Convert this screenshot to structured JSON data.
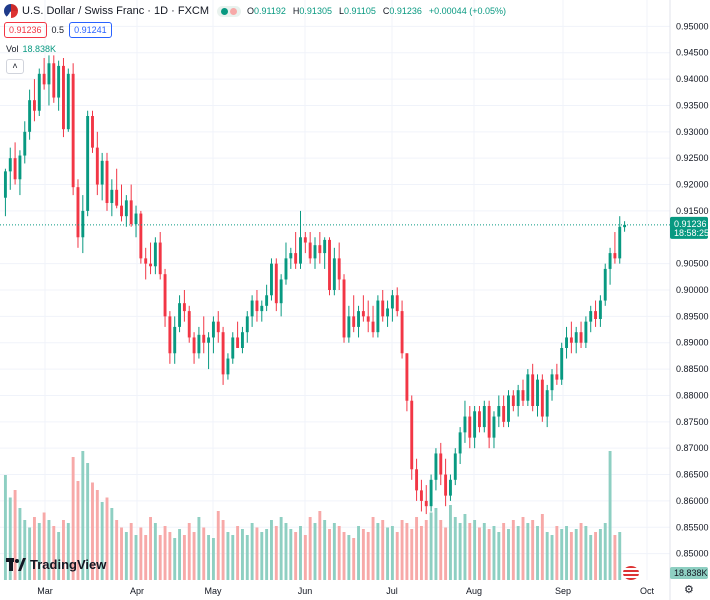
{
  "header": {
    "title": "U.S. Dollar / Swiss Franc · 1D · FXCM",
    "ohlc": [
      {
        "label": "O",
        "value": "0.91192"
      },
      {
        "label": "H",
        "value": "0.91305"
      },
      {
        "label": "L",
        "value": "0.91105"
      },
      {
        "label": "C",
        "value": "0.91236"
      },
      {
        "label": "",
        "value": "+0.00044 (+0.05%)"
      }
    ],
    "sell_price": "0.91236",
    "spread": "0.5",
    "buy_price": "0.91241"
  },
  "volume_legend": {
    "label": "Vol",
    "value": "18.838K"
  },
  "collapse_icon": "chevron-up-icon",
  "logo_text": "TradingView",
  "colors": {
    "up": "#089981",
    "down": "#f23645",
    "up_vol": "#8ecfc2",
    "down_vol": "#f7a9a8",
    "grid": "#f0f3fa"
  },
  "chart_data": {
    "type": "candlestick",
    "y_axis": {
      "min": 0.845,
      "max": 0.955,
      "ticks": [
        "0.95000",
        "0.94500",
        "0.94000",
        "0.93500",
        "0.93000",
        "0.92500",
        "0.92000",
        "0.91500",
        "0.90500",
        "0.90000",
        "0.89500",
        "0.89000",
        "0.88500",
        "0.88000",
        "0.87500",
        "0.87000",
        "0.86500",
        "0.86000",
        "0.85500",
        "0.85000"
      ]
    },
    "x_axis": {
      "ticks": [
        "Mar",
        "Apr",
        "May",
        "Jun",
        "Jul",
        "Aug",
        "Sep",
        "Oct"
      ]
    },
    "last_price_label": "0.91236",
    "countdown_label": "18:58:25",
    "last_volume_label": "18.838K",
    "candles": [
      {
        "o": 0.9175,
        "h": 0.923,
        "l": 0.914,
        "c": 0.9225
      },
      {
        "o": 0.9225,
        "h": 0.927,
        "l": 0.919,
        "c": 0.925
      },
      {
        "o": 0.925,
        "h": 0.928,
        "l": 0.92,
        "c": 0.921
      },
      {
        "o": 0.921,
        "h": 0.9265,
        "l": 0.918,
        "c": 0.9255
      },
      {
        "o": 0.9255,
        "h": 0.932,
        "l": 0.924,
        "c": 0.93
      },
      {
        "o": 0.93,
        "h": 0.938,
        "l": 0.9285,
        "c": 0.936
      },
      {
        "o": 0.936,
        "h": 0.94,
        "l": 0.932,
        "c": 0.934
      },
      {
        "o": 0.934,
        "h": 0.942,
        "l": 0.933,
        "c": 0.941
      },
      {
        "o": 0.941,
        "h": 0.944,
        "l": 0.938,
        "c": 0.939
      },
      {
        "o": 0.939,
        "h": 0.9445,
        "l": 0.935,
        "c": 0.943
      },
      {
        "o": 0.943,
        "h": 0.9445,
        "l": 0.9355,
        "c": 0.9365
      },
      {
        "o": 0.9365,
        "h": 0.9435,
        "l": 0.934,
        "c": 0.9425
      },
      {
        "o": 0.9425,
        "h": 0.944,
        "l": 0.929,
        "c": 0.9305
      },
      {
        "o": 0.9305,
        "h": 0.942,
        "l": 0.93,
        "c": 0.941
      },
      {
        "o": 0.941,
        "h": 0.943,
        "l": 0.918,
        "c": 0.9195
      },
      {
        "o": 0.9195,
        "h": 0.921,
        "l": 0.908,
        "c": 0.91
      },
      {
        "o": 0.91,
        "h": 0.918,
        "l": 0.907,
        "c": 0.915
      },
      {
        "o": 0.915,
        "h": 0.934,
        "l": 0.914,
        "c": 0.933
      },
      {
        "o": 0.933,
        "h": 0.934,
        "l": 0.926,
        "c": 0.927
      },
      {
        "o": 0.927,
        "h": 0.93,
        "l": 0.918,
        "c": 0.92
      },
      {
        "o": 0.92,
        "h": 0.926,
        "l": 0.917,
        "c": 0.9245
      },
      {
        "o": 0.9245,
        "h": 0.926,
        "l": 0.915,
        "c": 0.9165
      },
      {
        "o": 0.9165,
        "h": 0.921,
        "l": 0.914,
        "c": 0.919
      },
      {
        "o": 0.919,
        "h": 0.923,
        "l": 0.9155,
        "c": 0.916
      },
      {
        "o": 0.916,
        "h": 0.92,
        "l": 0.913,
        "c": 0.914
      },
      {
        "o": 0.914,
        "h": 0.918,
        "l": 0.912,
        "c": 0.917
      },
      {
        "o": 0.917,
        "h": 0.92,
        "l": 0.912,
        "c": 0.9125
      },
      {
        "o": 0.9125,
        "h": 0.916,
        "l": 0.91,
        "c": 0.9145
      },
      {
        "o": 0.9145,
        "h": 0.915,
        "l": 0.905,
        "c": 0.906
      },
      {
        "o": 0.906,
        "h": 0.908,
        "l": 0.902,
        "c": 0.905
      },
      {
        "o": 0.905,
        "h": 0.909,
        "l": 0.903,
        "c": 0.9045
      },
      {
        "o": 0.9045,
        "h": 0.91,
        "l": 0.903,
        "c": 0.909
      },
      {
        "o": 0.909,
        "h": 0.911,
        "l": 0.902,
        "c": 0.903
      },
      {
        "o": 0.903,
        "h": 0.904,
        "l": 0.893,
        "c": 0.895
      },
      {
        "o": 0.895,
        "h": 0.896,
        "l": 0.886,
        "c": 0.888
      },
      {
        "o": 0.888,
        "h": 0.895,
        "l": 0.886,
        "c": 0.893
      },
      {
        "o": 0.893,
        "h": 0.899,
        "l": 0.892,
        "c": 0.8975
      },
      {
        "o": 0.8975,
        "h": 0.9,
        "l": 0.894,
        "c": 0.896
      },
      {
        "o": 0.896,
        "h": 0.897,
        "l": 0.89,
        "c": 0.891
      },
      {
        "o": 0.891,
        "h": 0.892,
        "l": 0.886,
        "c": 0.888
      },
      {
        "o": 0.888,
        "h": 0.893,
        "l": 0.887,
        "c": 0.8915
      },
      {
        "o": 0.8915,
        "h": 0.895,
        "l": 0.888,
        "c": 0.89
      },
      {
        "o": 0.89,
        "h": 0.892,
        "l": 0.885,
        "c": 0.891
      },
      {
        "o": 0.891,
        "h": 0.895,
        "l": 0.888,
        "c": 0.894
      },
      {
        "o": 0.894,
        "h": 0.896,
        "l": 0.89,
        "c": 0.892
      },
      {
        "o": 0.892,
        "h": 0.893,
        "l": 0.882,
        "c": 0.884
      },
      {
        "o": 0.884,
        "h": 0.888,
        "l": 0.883,
        "c": 0.887
      },
      {
        "o": 0.887,
        "h": 0.892,
        "l": 0.886,
        "c": 0.891
      },
      {
        "o": 0.891,
        "h": 0.894,
        "l": 0.889,
        "c": 0.889
      },
      {
        "o": 0.889,
        "h": 0.893,
        "l": 0.888,
        "c": 0.892
      },
      {
        "o": 0.892,
        "h": 0.896,
        "l": 0.89,
        "c": 0.895
      },
      {
        "o": 0.895,
        "h": 0.899,
        "l": 0.893,
        "c": 0.898
      },
      {
        "o": 0.898,
        "h": 0.9,
        "l": 0.894,
        "c": 0.896
      },
      {
        "o": 0.896,
        "h": 0.898,
        "l": 0.894,
        "c": 0.897
      },
      {
        "o": 0.897,
        "h": 0.901,
        "l": 0.896,
        "c": 0.899
      },
      {
        "o": 0.899,
        "h": 0.906,
        "l": 0.898,
        "c": 0.905
      },
      {
        "o": 0.905,
        "h": 0.906,
        "l": 0.896,
        "c": 0.8975
      },
      {
        "o": 0.8975,
        "h": 0.903,
        "l": 0.895,
        "c": 0.902
      },
      {
        "o": 0.902,
        "h": 0.909,
        "l": 0.901,
        "c": 0.906
      },
      {
        "o": 0.906,
        "h": 0.908,
        "l": 0.904,
        "c": 0.907
      },
      {
        "o": 0.907,
        "h": 0.911,
        "l": 0.904,
        "c": 0.905
      },
      {
        "o": 0.905,
        "h": 0.915,
        "l": 0.904,
        "c": 0.91
      },
      {
        "o": 0.91,
        "h": 0.911,
        "l": 0.907,
        "c": 0.909
      },
      {
        "o": 0.909,
        "h": 0.911,
        "l": 0.905,
        "c": 0.906
      },
      {
        "o": 0.906,
        "h": 0.91,
        "l": 0.904,
        "c": 0.9085
      },
      {
        "o": 0.9085,
        "h": 0.911,
        "l": 0.905,
        "c": 0.907
      },
      {
        "o": 0.907,
        "h": 0.91,
        "l": 0.904,
        "c": 0.9095
      },
      {
        "o": 0.9095,
        "h": 0.91,
        "l": 0.899,
        "c": 0.9
      },
      {
        "o": 0.9,
        "h": 0.908,
        "l": 0.899,
        "c": 0.906
      },
      {
        "o": 0.906,
        "h": 0.909,
        "l": 0.9,
        "c": 0.902
      },
      {
        "o": 0.902,
        "h": 0.903,
        "l": 0.89,
        "c": 0.891
      },
      {
        "o": 0.891,
        "h": 0.897,
        "l": 0.89,
        "c": 0.895
      },
      {
        "o": 0.895,
        "h": 0.899,
        "l": 0.892,
        "c": 0.893
      },
      {
        "o": 0.893,
        "h": 0.897,
        "l": 0.891,
        "c": 0.896
      },
      {
        "o": 0.896,
        "h": 0.899,
        "l": 0.894,
        "c": 0.895
      },
      {
        "o": 0.895,
        "h": 0.898,
        "l": 0.892,
        "c": 0.894
      },
      {
        "o": 0.894,
        "h": 0.897,
        "l": 0.891,
        "c": 0.892
      },
      {
        "o": 0.892,
        "h": 0.899,
        "l": 0.891,
        "c": 0.898
      },
      {
        "o": 0.898,
        "h": 0.9,
        "l": 0.894,
        "c": 0.895
      },
      {
        "o": 0.895,
        "h": 0.898,
        "l": 0.893,
        "c": 0.8965
      },
      {
        "o": 0.8965,
        "h": 0.9,
        "l": 0.894,
        "c": 0.899
      },
      {
        "o": 0.899,
        "h": 0.9005,
        "l": 0.895,
        "c": 0.896
      },
      {
        "o": 0.896,
        "h": 0.898,
        "l": 0.887,
        "c": 0.888
      },
      {
        "o": 0.888,
        "h": 0.888,
        "l": 0.877,
        "c": 0.879
      },
      {
        "o": 0.879,
        "h": 0.88,
        "l": 0.864,
        "c": 0.866
      },
      {
        "o": 0.866,
        "h": 0.868,
        "l": 0.86,
        "c": 0.862
      },
      {
        "o": 0.862,
        "h": 0.864,
        "l": 0.858,
        "c": 0.86
      },
      {
        "o": 0.86,
        "h": 0.863,
        "l": 0.8575,
        "c": 0.859
      },
      {
        "o": 0.859,
        "h": 0.865,
        "l": 0.858,
        "c": 0.864
      },
      {
        "o": 0.864,
        "h": 0.87,
        "l": 0.862,
        "c": 0.869
      },
      {
        "o": 0.869,
        "h": 0.871,
        "l": 0.863,
        "c": 0.865
      },
      {
        "o": 0.865,
        "h": 0.868,
        "l": 0.859,
        "c": 0.861
      },
      {
        "o": 0.861,
        "h": 0.865,
        "l": 0.86,
        "c": 0.864
      },
      {
        "o": 0.864,
        "h": 0.87,
        "l": 0.863,
        "c": 0.869
      },
      {
        "o": 0.869,
        "h": 0.874,
        "l": 0.867,
        "c": 0.873
      },
      {
        "o": 0.873,
        "h": 0.879,
        "l": 0.871,
        "c": 0.876
      },
      {
        "o": 0.876,
        "h": 0.878,
        "l": 0.87,
        "c": 0.872
      },
      {
        "o": 0.872,
        "h": 0.878,
        "l": 0.87,
        "c": 0.877
      },
      {
        "o": 0.877,
        "h": 0.878,
        "l": 0.873,
        "c": 0.874
      },
      {
        "o": 0.874,
        "h": 0.879,
        "l": 0.873,
        "c": 0.878
      },
      {
        "o": 0.878,
        "h": 0.879,
        "l": 0.87,
        "c": 0.872
      },
      {
        "o": 0.872,
        "h": 0.877,
        "l": 0.87,
        "c": 0.876
      },
      {
        "o": 0.876,
        "h": 0.88,
        "l": 0.874,
        "c": 0.878
      },
      {
        "o": 0.878,
        "h": 0.88,
        "l": 0.874,
        "c": 0.875
      },
      {
        "o": 0.875,
        "h": 0.881,
        "l": 0.874,
        "c": 0.88
      },
      {
        "o": 0.88,
        "h": 0.881,
        "l": 0.877,
        "c": 0.878
      },
      {
        "o": 0.878,
        "h": 0.882,
        "l": 0.876,
        "c": 0.881
      },
      {
        "o": 0.881,
        "h": 0.883,
        "l": 0.878,
        "c": 0.879
      },
      {
        "o": 0.879,
        "h": 0.885,
        "l": 0.878,
        "c": 0.884
      },
      {
        "o": 0.884,
        "h": 0.886,
        "l": 0.877,
        "c": 0.878
      },
      {
        "o": 0.878,
        "h": 0.884,
        "l": 0.876,
        "c": 0.883
      },
      {
        "o": 0.883,
        "h": 0.884,
        "l": 0.875,
        "c": 0.876
      },
      {
        "o": 0.876,
        "h": 0.882,
        "l": 0.874,
        "c": 0.881
      },
      {
        "o": 0.881,
        "h": 0.885,
        "l": 0.879,
        "c": 0.884
      },
      {
        "o": 0.884,
        "h": 0.886,
        "l": 0.882,
        "c": 0.883
      },
      {
        "o": 0.883,
        "h": 0.89,
        "l": 0.882,
        "c": 0.889
      },
      {
        "o": 0.889,
        "h": 0.893,
        "l": 0.887,
        "c": 0.891
      },
      {
        "o": 0.891,
        "h": 0.894,
        "l": 0.888,
        "c": 0.89
      },
      {
        "o": 0.89,
        "h": 0.893,
        "l": 0.888,
        "c": 0.892
      },
      {
        "o": 0.892,
        "h": 0.894,
        "l": 0.889,
        "c": 0.89
      },
      {
        "o": 0.89,
        "h": 0.895,
        "l": 0.889,
        "c": 0.894
      },
      {
        "o": 0.894,
        "h": 0.897,
        "l": 0.892,
        "c": 0.896
      },
      {
        "o": 0.896,
        "h": 0.898,
        "l": 0.893,
        "c": 0.8945
      },
      {
        "o": 0.8945,
        "h": 0.899,
        "l": 0.893,
        "c": 0.898
      },
      {
        "o": 0.898,
        "h": 0.905,
        "l": 0.897,
        "c": 0.904
      },
      {
        "o": 0.904,
        "h": 0.908,
        "l": 0.901,
        "c": 0.907
      },
      {
        "o": 0.907,
        "h": 0.911,
        "l": 0.905,
        "c": 0.906
      },
      {
        "o": 0.906,
        "h": 0.914,
        "l": 0.905,
        "c": 0.912
      },
      {
        "o": 0.91192,
        "h": 0.91305,
        "l": 0.91105,
        "c": 0.91236
      }
    ],
    "volumes": [
      0.7,
      0.55,
      0.6,
      0.48,
      0.4,
      0.35,
      0.42,
      0.38,
      0.45,
      0.4,
      0.36,
      0.32,
      0.4,
      0.38,
      0.82,
      0.66,
      0.86,
      0.78,
      0.65,
      0.6,
      0.52,
      0.55,
      0.48,
      0.4,
      0.35,
      0.32,
      0.38,
      0.3,
      0.35,
      0.3,
      0.42,
      0.38,
      0.3,
      0.36,
      0.32,
      0.28,
      0.34,
      0.3,
      0.38,
      0.32,
      0.42,
      0.35,
      0.3,
      0.28,
      0.46,
      0.4,
      0.32,
      0.3,
      0.36,
      0.34,
      0.3,
      0.38,
      0.35,
      0.32,
      0.34,
      0.4,
      0.36,
      0.42,
      0.38,
      0.34,
      0.32,
      0.36,
      0.3,
      0.42,
      0.38,
      0.46,
      0.4,
      0.34,
      0.38,
      0.36,
      0.32,
      0.3,
      0.28,
      0.36,
      0.34,
      0.32,
      0.42,
      0.38,
      0.4,
      0.35,
      0.36,
      0.32,
      0.4,
      0.38,
      0.34,
      0.42,
      0.36,
      0.4,
      0.45,
      0.48,
      0.4,
      0.35,
      0.5,
      0.42,
      0.38,
      0.44,
      0.38,
      0.4,
      0.35,
      0.38,
      0.34,
      0.36,
      0.32,
      0.38,
      0.34,
      0.4,
      0.36,
      0.42,
      0.38,
      0.4,
      0.36,
      0.44,
      0.32,
      0.3,
      0.36,
      0.34,
      0.36,
      0.32,
      0.34,
      0.38,
      0.36,
      0.3,
      0.32,
      0.34,
      0.38,
      0.86,
      0.3,
      0.32
    ]
  }
}
